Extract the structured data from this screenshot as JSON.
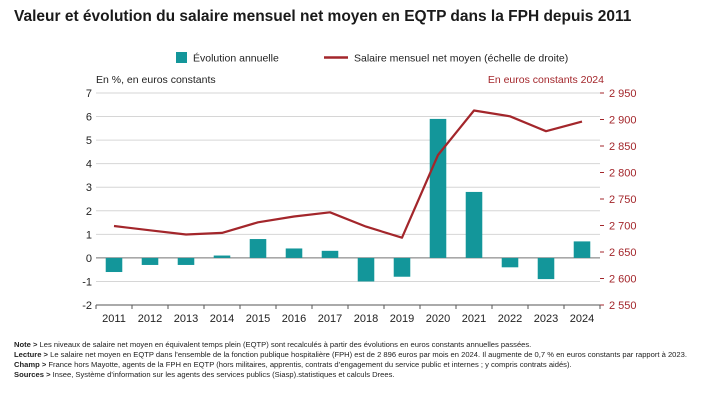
{
  "title": "Valeur et évolution du salaire mensuel net moyen en EQTP dans la FPH depuis 2011",
  "colors": {
    "bar": "#13969a",
    "line": "#a3262b",
    "axis_left": "#222222",
    "axis_right": "#a3262b",
    "grid": "#d6d6d6"
  },
  "chart_data": {
    "type": "bar+line",
    "categories": [
      "2011",
      "2012",
      "2013",
      "2014",
      "2015",
      "2016",
      "2017",
      "2018",
      "2019",
      "2020",
      "2021",
      "2022",
      "2023",
      "2024"
    ],
    "series": [
      {
        "name": "Évolution annuelle",
        "type": "bar",
        "axis": "left",
        "values": [
          -0.6,
          -0.3,
          -0.3,
          0.1,
          0.8,
          0.4,
          0.3,
          -1.0,
          -0.8,
          5.9,
          2.8,
          -0.4,
          -0.9,
          0.7
        ]
      },
      {
        "name": "Salaire mensuel net moyen (échelle de droite)",
        "type": "line",
        "axis": "right",
        "values": [
          2699,
          2691,
          2683,
          2686,
          2706,
          2717,
          2725,
          2698,
          2677,
          2833,
          2917,
          2906,
          2878,
          2896
        ]
      }
    ],
    "left_axis": {
      "label": "En %, en euros constants",
      "ylim": [
        -2,
        7
      ],
      "ticks": [
        "-2",
        "-1",
        "0",
        "1",
        "2",
        "3",
        "4",
        "5",
        "6",
        "7"
      ]
    },
    "right_axis": {
      "label": "En euros constants 2024",
      "ylim": [
        2550,
        2950
      ],
      "ticks": [
        "2 550",
        "2 600",
        "2 650",
        "2 700",
        "2 750",
        "2 800",
        "2 850",
        "2 900",
        "2 950"
      ]
    },
    "grid": true,
    "legend_position": "top"
  },
  "notes": [
    {
      "label": "Note >",
      "text": " Les niveaux de salaire net moyen en équivalent temps plein (EQTP) sont recalculés à partir des évolutions en euros constants annuelles passées."
    },
    {
      "label": "Lecture >",
      "text": " Le salaire net moyen en EQTP dans l’ensemble de la fonction publique hospitalière (FPH) est de 2 896 euros par mois en 2024. Il augmente de 0,7 % en euros constants par rapport à 2023."
    },
    {
      "label": "Champ >",
      "text": " France hors Mayotte, agents de la FPH en EQTP (hors militaires, apprentis, contrats d’engagement du service public et internes ; y compris contrats aidés)."
    },
    {
      "label": "Sources >",
      "text": " Insee, Système d’information sur les agents des services publics (Siasp).statistiques et calculs Drees."
    }
  ]
}
